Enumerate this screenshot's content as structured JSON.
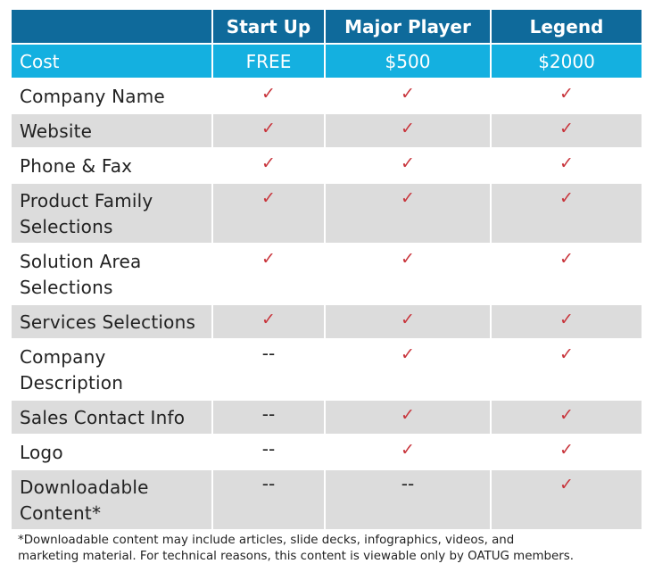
{
  "header": {
    "blank": "",
    "tiers": [
      "Start Up",
      "Major Player",
      "Legend"
    ]
  },
  "cost": {
    "label": "Cost",
    "values": [
      "FREE",
      "$500",
      "$2000"
    ]
  },
  "icons": {
    "included": "check-icon",
    "excluded": "dash"
  },
  "colors": {
    "header_bg": "#0f6a9b",
    "cost_bg": "#14b0e0",
    "stripe_bg": "#dcdcdc",
    "check": "#c8343b"
  },
  "rows": [
    {
      "feature": "Company Name",
      "marks": [
        "✓",
        "✓",
        "✓"
      ]
    },
    {
      "feature": "Website",
      "marks": [
        "✓",
        "✓",
        "✓"
      ]
    },
    {
      "feature": "Phone & Fax",
      "marks": [
        "✓",
        "✓",
        "✓"
      ]
    },
    {
      "feature": "Product Family\nSelections",
      "marks": [
        "✓",
        "✓",
        "✓"
      ]
    },
    {
      "feature": "Solution Area\nSelections",
      "marks": [
        "✓",
        "✓",
        "✓"
      ]
    },
    {
      "feature": "Services Selections",
      "marks": [
        "✓",
        "✓",
        "✓"
      ]
    },
    {
      "feature": "Company\nDescription",
      "marks": [
        "--",
        "✓",
        "✓"
      ]
    },
    {
      "feature": "Sales Contact Info",
      "marks": [
        "--",
        "✓",
        "✓"
      ]
    },
    {
      "feature": "Logo",
      "marks": [
        "--",
        "✓",
        "✓"
      ]
    },
    {
      "feature": "Downloadable\nContent*",
      "marks": [
        "--",
        "--",
        "✓"
      ]
    }
  ],
  "footnote": {
    "line1": "*Downloadable content may include articles, slide decks, infographics, videos, and",
    "line2": "marketing material. For technical reasons, this content is viewable only by OATUG members."
  }
}
